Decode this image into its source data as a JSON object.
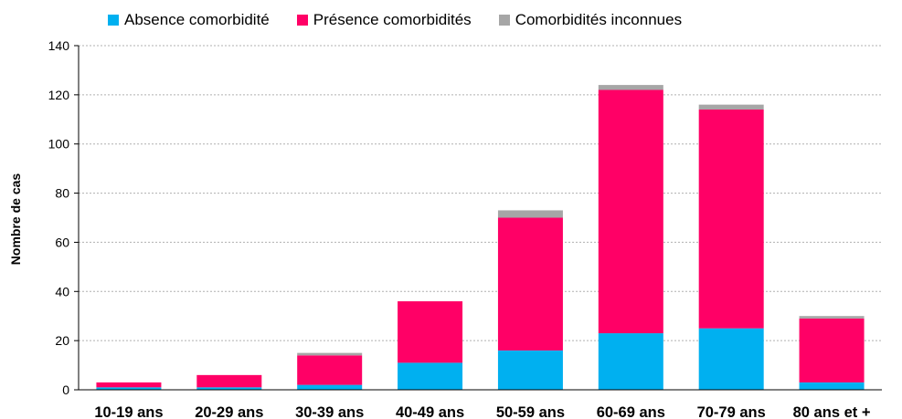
{
  "chart_data": {
    "type": "bar",
    "stacked": true,
    "categories": [
      "10-19 ans",
      "20-29 ans",
      "30-39 ans",
      "40-49 ans",
      "50-59 ans",
      "60-69 ans",
      "70-79 ans",
      "80 ans et +"
    ],
    "series": [
      {
        "name": "Absence comorbidité",
        "color": "#00b0f0",
        "values": [
          1,
          1,
          2,
          11,
          16,
          23,
          25,
          3
        ]
      },
      {
        "name": "Présence comorbidités",
        "color": "#ff0066",
        "values": [
          2,
          5,
          12,
          25,
          54,
          99,
          89,
          26
        ]
      },
      {
        "name": "Comorbidités inconnues",
        "color": "#a6a6a6",
        "values": [
          0,
          0,
          1,
          0,
          3,
          2,
          2,
          1
        ]
      }
    ],
    "ylabel": "Nombre de cas",
    "xlabel": "",
    "ylim": [
      0,
      140
    ],
    "yticks": [
      0,
      20,
      40,
      60,
      80,
      100,
      120,
      140
    ],
    "grid": true,
    "legend_position": "top"
  }
}
